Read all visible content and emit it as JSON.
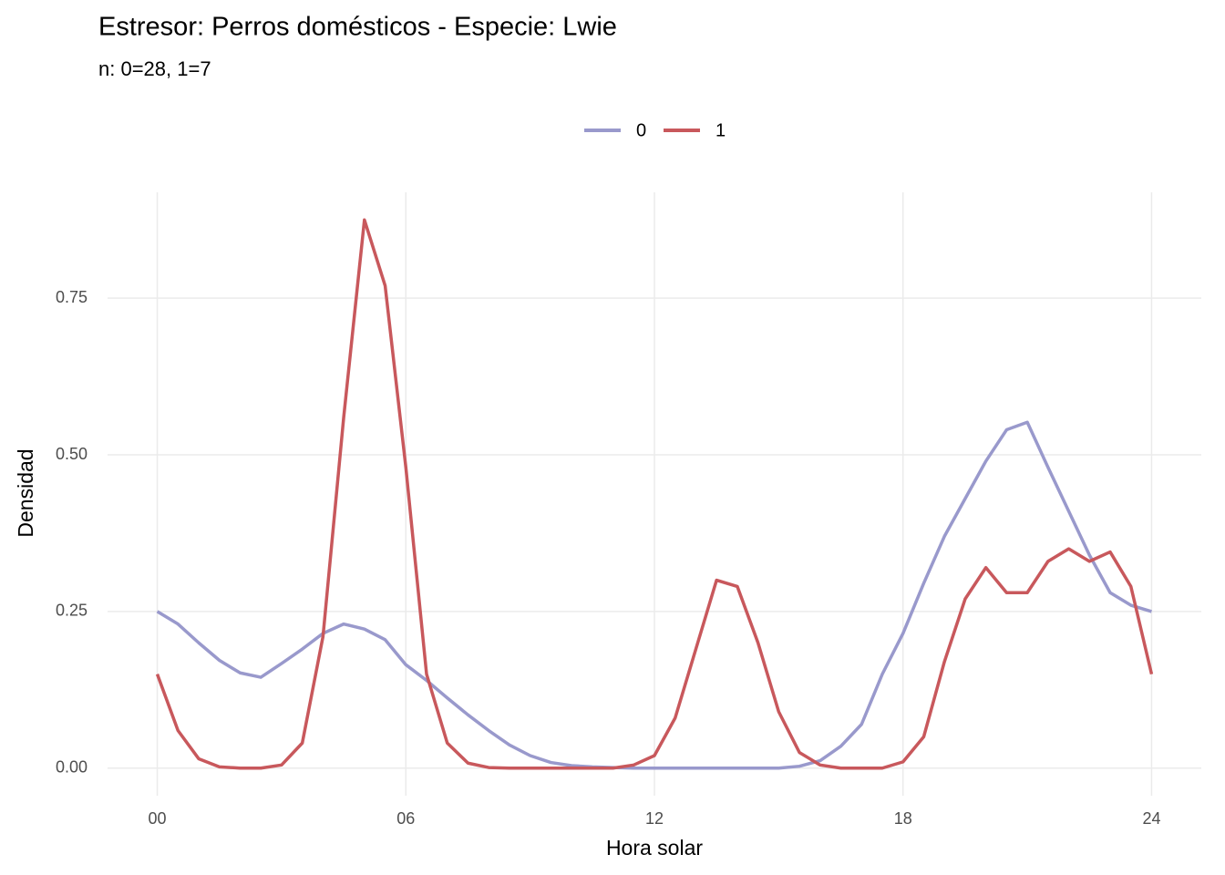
{
  "chart_data": {
    "type": "line",
    "title": "Estresor: Perros domésticos - Especie:  Lwie",
    "subtitle": "n:  0=28, 1=7",
    "x_label": "Hora solar",
    "y_label": "Densidad",
    "legend_position": "top",
    "grid": true,
    "x": [
      0,
      0.5,
      1,
      1.5,
      2,
      2.5,
      3,
      3.5,
      4,
      4.5,
      5,
      5.5,
      6,
      6.5,
      7,
      7.5,
      8,
      8.5,
      9,
      9.5,
      10,
      10.5,
      11,
      11.5,
      12,
      12.5,
      13,
      13.5,
      14,
      14.5,
      15,
      15.5,
      16,
      16.5,
      17,
      17.5,
      18,
      18.5,
      19,
      19.5,
      20,
      20.5,
      21,
      21.5,
      22,
      22.5,
      23,
      23.5,
      24
    ],
    "series": [
      {
        "name": "0",
        "color": "#9999cc",
        "values": [
          0.25,
          0.23,
          0.2,
          0.172,
          0.152,
          0.145,
          0.167,
          0.19,
          0.215,
          0.23,
          0.222,
          0.205,
          0.165,
          0.14,
          0.112,
          0.085,
          0.06,
          0.037,
          0.02,
          0.009,
          0.004,
          0.002,
          0.001,
          0,
          0,
          0,
          0,
          0,
          0,
          0,
          0,
          0.003,
          0.012,
          0.035,
          0.07,
          0.15,
          0.215,
          0.295,
          0.37,
          0.43,
          0.49,
          0.54,
          0.552,
          0.48,
          0.41,
          0.34,
          0.28,
          0.26,
          0.25
        ]
      },
      {
        "name": "1",
        "color": "#c8585c",
        "values": [
          0.15,
          0.06,
          0.015,
          0.002,
          0,
          0,
          0.005,
          0.04,
          0.21,
          0.56,
          0.875,
          0.77,
          0.48,
          0.15,
          0.04,
          0.008,
          0.001,
          0,
          0,
          0,
          0,
          0,
          0,
          0.005,
          0.02,
          0.08,
          0.19,
          0.3,
          0.29,
          0.2,
          0.09,
          0.025,
          0.005,
          0,
          0,
          0,
          0.01,
          0.05,
          0.17,
          0.27,
          0.32,
          0.28,
          0.28,
          0.33,
          0.35,
          0.33,
          0.345,
          0.29,
          0.15
        ]
      }
    ],
    "xlim": [
      -1.2,
      25.2
    ],
    "ylim": [
      -0.044,
      0.919
    ],
    "xticks": [
      {
        "value": 0,
        "label": "00"
      },
      {
        "value": 6,
        "label": "06"
      },
      12,
      18,
      24
    ],
    "yticks": [
      {
        "value": 0,
        "label": "0.00"
      },
      {
        "value": 0.25,
        "label": "0.25"
      },
      {
        "value": 0.5,
        "label": "0.50"
      },
      {
        "value": 0.75,
        "label": "0.75"
      }
    ]
  }
}
